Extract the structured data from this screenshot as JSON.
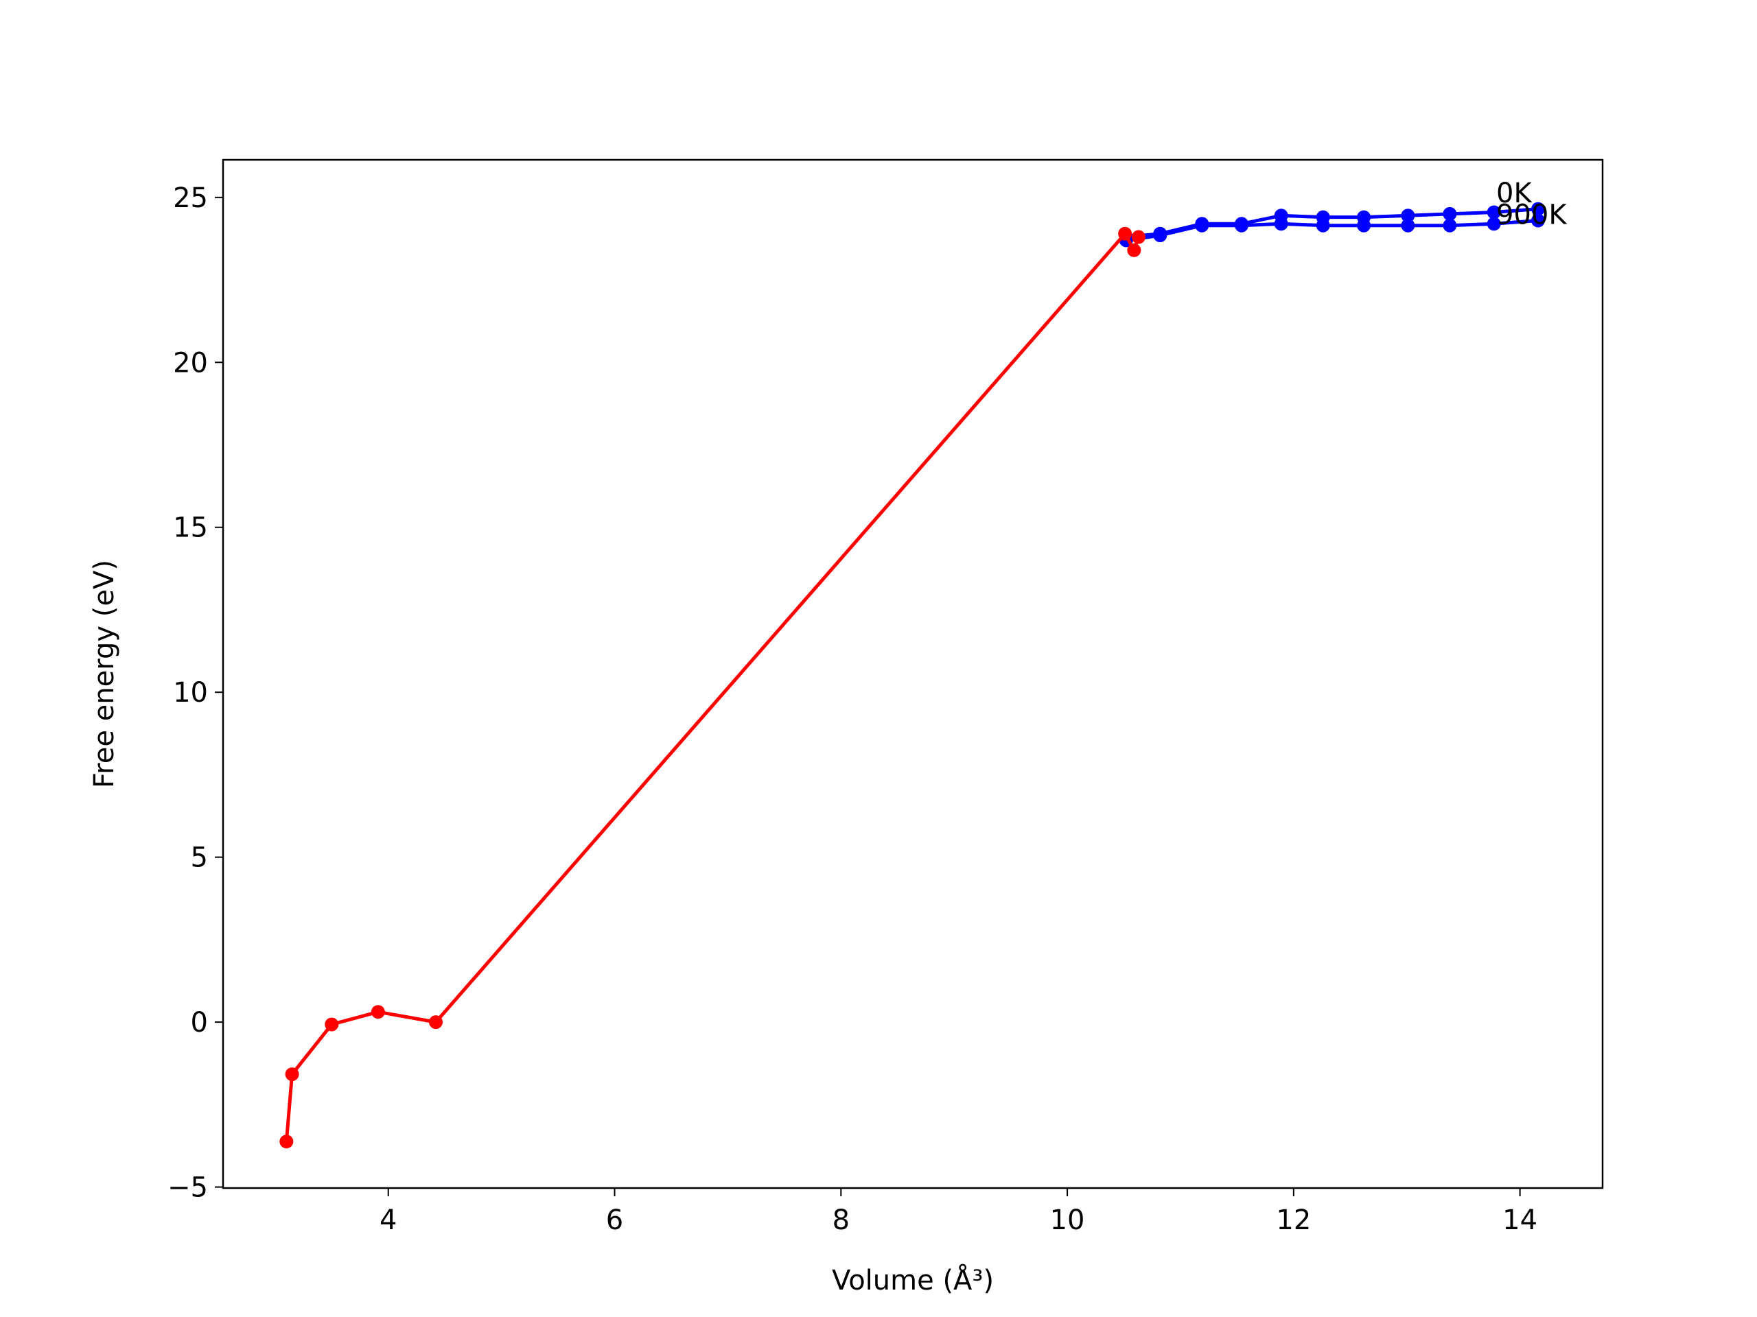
{
  "chart_data": {
    "type": "line",
    "xlabel": "Volume (Å³)",
    "ylabel": "Free energy (eV)",
    "xlim": [
      2.54,
      14.73
    ],
    "ylim": [
      -5.03,
      26.14
    ],
    "xticks": [
      4,
      6,
      8,
      10,
      12,
      14
    ],
    "yticks": [
      {
        "value": -5,
        "label": "−5"
      },
      0,
      5,
      10,
      15,
      20,
      25
    ],
    "grid": false,
    "series": [
      {
        "color": "#0000ff",
        "x": [
          10.52,
          10.82,
          11.19,
          11.54,
          11.89,
          12.26,
          12.62,
          13.01,
          13.38,
          13.77,
          14.16
        ],
        "values": [
          23.8,
          23.9,
          24.2,
          24.2,
          24.45,
          24.4,
          24.4,
          24.45,
          24.5,
          24.55,
          24.65
        ]
      },
      {
        "color": "#0000ff",
        "x": [
          10.52,
          10.82,
          11.19,
          11.54,
          11.89,
          12.26,
          12.62,
          13.01,
          13.38,
          13.77,
          14.16
        ],
        "values": [
          23.7,
          23.85,
          24.15,
          24.15,
          24.2,
          24.15,
          24.15,
          24.15,
          24.15,
          24.2,
          24.3
        ]
      },
      {
        "color": "#ff0000",
        "x": [
          3.1,
          3.15,
          3.5,
          3.91,
          4.42,
          10.51,
          10.59,
          10.63
        ],
        "values": [
          -3.62,
          -1.58,
          -0.07,
          0.31,
          0,
          23.9,
          23.4,
          23.8
        ]
      }
    ],
    "annotations": [
      {
        "text": "0K",
        "x": 13.79,
        "y": 25.1
      },
      {
        "text": "900K",
        "x": 13.79,
        "y": 24.45
      }
    ]
  }
}
